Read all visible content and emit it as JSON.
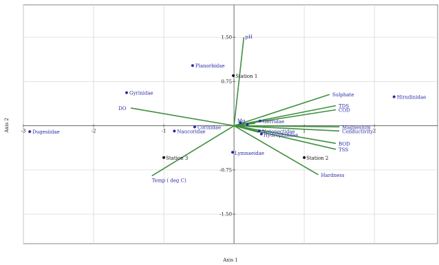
{
  "chart_data": {
    "type": "scatter",
    "title": "",
    "xlabel": "Axis 1",
    "ylabel": "Axis 2",
    "xlim": [
      -3.0,
      2.9
    ],
    "ylim": [
      -2.0,
      2.05
    ],
    "x_ticks": [
      {
        "value": -3,
        "label": "-3"
      },
      {
        "value": -2,
        "label": "-2"
      },
      {
        "value": -1,
        "label": "-1"
      },
      {
        "value": 1,
        "label": "1"
      },
      {
        "value": 2,
        "label": "2"
      }
    ],
    "y_ticks": [
      {
        "value": 1.5,
        "label": "1.50"
      },
      {
        "value": 0.75,
        "label": "0.75"
      },
      {
        "value": -0.75,
        "label": "-0.75"
      },
      {
        "value": -1.5,
        "label": "-1.50"
      }
    ],
    "grid": true,
    "colors": {
      "taxa": "#2a2aa8",
      "sites": "#111111",
      "vectors": "#3d8f3d",
      "grid": "#d8d8d8",
      "axis": "#666666"
    },
    "taxa": [
      {
        "label": "Dugesiidae",
        "x": -2.91,
        "y": -0.1
      },
      {
        "label": "Gyrinidae",
        "x": -1.53,
        "y": 0.56
      },
      {
        "label": "Planorbidae",
        "x": -0.59,
        "y": 1.02
      },
      {
        "label": "Corixidae",
        "x": -0.56,
        "y": -0.02
      },
      {
        "label": "Naucoridae",
        "x": -0.85,
        "y": -0.09
      },
      {
        "label": "Gerridae",
        "x": 0.37,
        "y": 0.08
      },
      {
        "label": "Notonectidae",
        "x": 0.36,
        "y": -0.09
      },
      {
        "label": "Hydrophilidae",
        "x": 0.39,
        "y": -0.14
      },
      {
        "label": "Lymnaeidae",
        "x": -0.02,
        "y": -0.45
      },
      {
        "label": "Hirudinidae",
        "x": 2.28,
        "y": 0.49
      },
      {
        "label": "",
        "x": 0.09,
        "y": 0.05
      },
      {
        "label": "",
        "x": 0.19,
        "y": 0.02
      }
    ],
    "stations": [
      {
        "label": "Station 1",
        "x": -0.01,
        "y": 0.85
      },
      {
        "label": "Station 2",
        "x": 1.0,
        "y": -0.54
      },
      {
        "label": "Station 3",
        "x": -1.0,
        "y": -0.54
      }
    ],
    "vectors": [
      {
        "label": "pH",
        "x": 0.14,
        "y": 1.5
      },
      {
        "label": "DO",
        "x": -1.47,
        "y": 0.3
      },
      {
        "label": "Temp ( deg C)",
        "x": -1.17,
        "y": -0.85
      },
      {
        "label": "Sulphate",
        "x": 1.36,
        "y": 0.53
      },
      {
        "label": "TDS",
        "x": 1.45,
        "y": 0.34
      },
      {
        "label": "COD",
        "x": 1.45,
        "y": 0.27
      },
      {
        "label": "Magnesium",
        "x": 1.5,
        "y": -0.02
      },
      {
        "label": "Conductivity",
        "x": 1.5,
        "y": -0.09
      },
      {
        "label": "BOD",
        "x": 1.45,
        "y": -0.3
      },
      {
        "label": "TSS",
        "x": 1.45,
        "y": -0.4
      },
      {
        "label": "Hardness",
        "x": 1.2,
        "y": -0.83
      },
      {
        "label": "Mg",
        "x": 0.2,
        "y": 0.03
      },
      {
        "label": "",
        "x": 0.3,
        "y": 0.04
      },
      {
        "label": "",
        "x": 0.35,
        "y": -0.11
      }
    ]
  }
}
